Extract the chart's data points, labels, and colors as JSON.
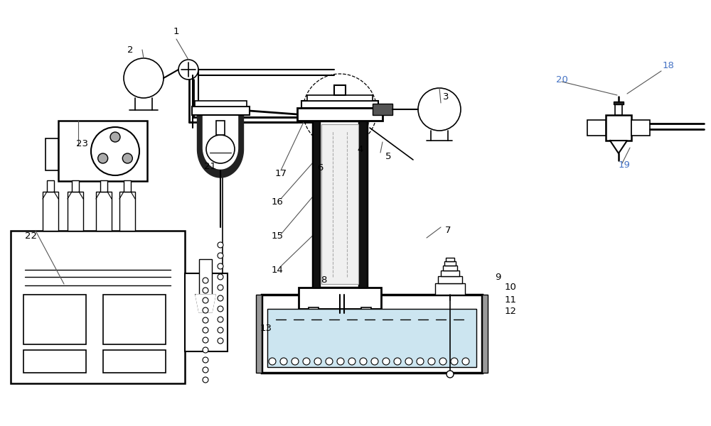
{
  "bg_color": "#ffffff",
  "line_color": "#000000",
  "label_color_blue": "#4472C4",
  "label_color_black": "#000000",
  "figsize": [
    10.0,
    6.0
  ],
  "dpi": 100
}
